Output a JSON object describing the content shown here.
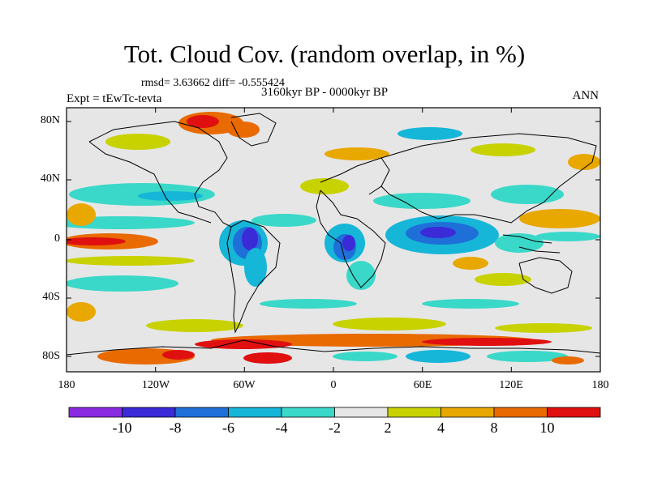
{
  "title": "Tot. Cloud Cov. (random overlap, in %)",
  "stats": "rmsd= 3.63662 diff= -0.555424",
  "experiment": "Expt = tEwTc-tevta",
  "period": "3160kyr BP - 0000kyr BP",
  "season": "ANN",
  "lat_labels": [
    "80N",
    "40N",
    "0",
    "40S",
    "80S"
  ],
  "lon_labels": [
    "180",
    "120W",
    "60W",
    "0",
    "60E",
    "120E",
    "180"
  ],
  "colorbar": {
    "labels": [
      "-10",
      "-8",
      "-6",
      "-4",
      "-2",
      "2",
      "4",
      "8",
      "10"
    ],
    "colors": [
      "#8a2be2",
      "#3a2ad8",
      "#1f6fd8",
      "#16b6d8",
      "#3ad8c8",
      "#e6e6e6",
      "#c8d200",
      "#e8a800",
      "#e86a00",
      "#e01010"
    ]
  }
}
